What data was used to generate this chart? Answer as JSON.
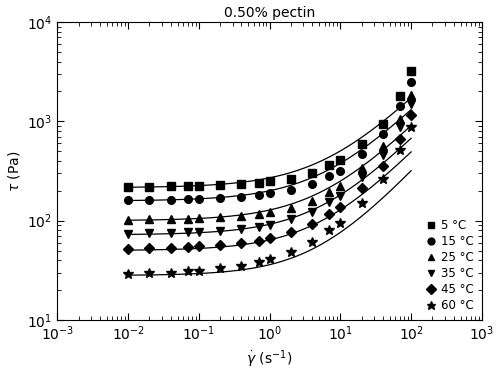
{
  "title": "0.50% pectin",
  "xlabel": "$\\dot{\\gamma}$ (s$^{-1}$)",
  "ylabel": "$\\tau$ (Pa)",
  "xlim": [
    0.001,
    1000.0
  ],
  "ylim": [
    10,
    10000.0
  ],
  "series": [
    {
      "label": "5 °C",
      "marker": "s",
      "tau0": 215,
      "K": 55,
      "n": 0.72,
      "gamma_data": [
        0.01,
        0.02,
        0.04,
        0.07,
        0.1,
        0.2,
        0.4,
        0.7,
        1.0,
        2.0,
        4.0,
        7.0,
        10.0,
        20.0,
        40.0,
        70.0,
        100.0
      ],
      "tau_data": [
        218,
        220,
        222,
        223,
        224,
        227,
        232,
        240,
        248,
        265,
        300,
        360,
        410,
        590,
        950,
        1800,
        3200
      ]
    },
    {
      "label": "15 °C",
      "marker": "o",
      "tau0": 158,
      "K": 42,
      "n": 0.72,
      "gamma_data": [
        0.01,
        0.02,
        0.04,
        0.07,
        0.1,
        0.2,
        0.4,
        0.7,
        1.0,
        2.0,
        4.0,
        7.0,
        10.0,
        20.0,
        40.0,
        70.0,
        100.0
      ],
      "tau_data": [
        160,
        162,
        163,
        165,
        166,
        169,
        174,
        181,
        188,
        202,
        232,
        280,
        320,
        465,
        750,
        1420,
        2500
      ]
    },
    {
      "label": "25 °C",
      "marker": "^",
      "tau0": 100,
      "K": 28,
      "n": 0.73,
      "gamma_data": [
        0.01,
        0.02,
        0.04,
        0.07,
        0.1,
        0.2,
        0.4,
        0.7,
        1.0,
        2.0,
        4.0,
        7.0,
        10.0,
        20.0,
        40.0,
        70.0,
        100.0
      ],
      "tau_data": [
        102,
        103,
        104,
        105,
        106,
        108,
        112,
        117,
        122,
        135,
        158,
        195,
        225,
        340,
        560,
        1060,
        1850
      ]
    },
    {
      "label": "35 °C",
      "marker": "v",
      "tau0": 72,
      "K": 20,
      "n": 0.74,
      "gamma_data": [
        0.01,
        0.02,
        0.04,
        0.07,
        0.1,
        0.2,
        0.4,
        0.7,
        1.0,
        2.0,
        4.0,
        7.0,
        10.0,
        20.0,
        40.0,
        70.0,
        100.0
      ],
      "tau_data": [
        74,
        75,
        75,
        76,
        77,
        79,
        82,
        87,
        91,
        103,
        123,
        154,
        179,
        275,
        460,
        870,
        1500
      ]
    },
    {
      "label": "45 °C",
      "marker": "D",
      "tau0": 50,
      "K": 14,
      "n": 0.75,
      "gamma_data": [
        0.01,
        0.02,
        0.04,
        0.07,
        0.1,
        0.2,
        0.4,
        0.7,
        1.0,
        2.0,
        4.0,
        7.0,
        10.0,
        20.0,
        40.0,
        70.0,
        100.0
      ],
      "tau_data": [
        52,
        53,
        53,
        54,
        55,
        57,
        59,
        63,
        67,
        76,
        93,
        118,
        138,
        212,
        356,
        670,
        1150
      ]
    },
    {
      "label": "60 °C",
      "marker": "*",
      "tau0": 28,
      "K": 8,
      "n": 0.78,
      "gamma_data": [
        0.01,
        0.02,
        0.04,
        0.07,
        0.1,
        0.2,
        0.4,
        0.7,
        1.0,
        2.0,
        4.0,
        7.0,
        10.0,
        20.0,
        40.0,
        70.0,
        100.0
      ],
      "tau_data": [
        29,
        30,
        30,
        31,
        31,
        33,
        35,
        38,
        41,
        48,
        61,
        80,
        95,
        150,
        260,
        510,
        880
      ]
    }
  ]
}
